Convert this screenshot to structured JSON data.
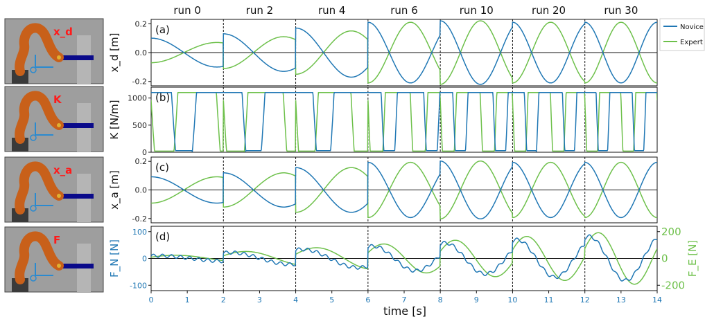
{
  "chart_data": {
    "type": "line",
    "runs": [
      "run 0",
      "run 2",
      "run 4",
      "run 6",
      "run 10",
      "run 20",
      "run 30"
    ],
    "xlabel": "time [s]",
    "xlim": [
      0,
      14
    ],
    "xticks": [
      "0",
      "1",
      "2",
      "3",
      "4",
      "5",
      "6",
      "7",
      "8",
      "9",
      "10",
      "11",
      "12",
      "13",
      "14"
    ],
    "run_boundaries": [
      2,
      4,
      6,
      8,
      10,
      12
    ],
    "legend": {
      "placement": "right",
      "entries": [
        {
          "name": "Novice",
          "color": "#1f77b4"
        },
        {
          "name": "Expert",
          "color": "#6dc04a"
        }
      ]
    },
    "panels": [
      {
        "tag": "(a)",
        "ylabel": "x_d [m]",
        "ylim": [
          -0.23,
          0.23
        ],
        "yticks": [
          "0.2",
          "0.0",
          "-0.2"
        ],
        "ytick_values": [
          0.2,
          0.0,
          -0.2
        ],
        "novice_amplitude": [
          0.1,
          0.13,
          0.17,
          0.21,
          0.22,
          0.21,
          0.21
        ],
        "expert_amplitude": [
          0.07,
          0.11,
          0.15,
          0.21,
          0.22,
          0.21,
          0.21
        ]
      },
      {
        "tag": "(b)",
        "ylabel": "K [N/m]",
        "ylim": [
          0,
          1200
        ],
        "yticks": [
          "1000",
          "500",
          "0"
        ],
        "ytick_values": [
          1000,
          500,
          0
        ],
        "high_level": 1100
      },
      {
        "tag": "(c)",
        "ylabel": "x_a [m]",
        "ylim": [
          -0.23,
          0.23
        ],
        "yticks": [
          "0.2",
          "0.0",
          "-0.2"
        ],
        "ytick_values": [
          0.2,
          0.0,
          -0.2
        ]
      },
      {
        "tag": "(d)",
        "ylabel_left": "F_N [N]",
        "ylabel_right": "F_E [N]",
        "ylim": [
          -120,
          120
        ],
        "yticks_left": [
          "100",
          "0",
          "-100"
        ],
        "ytick_values_left": [
          100,
          0,
          -100
        ],
        "yticks_right": [
          "200",
          "0",
          "-200"
        ],
        "ytick_values_right": [
          200,
          0,
          -200
        ]
      }
    ],
    "thumbnails": [
      {
        "label": "x_d"
      },
      {
        "label": "K"
      },
      {
        "label": "x_a"
      },
      {
        "label": "F"
      }
    ],
    "colors": {
      "novice": "#1f77b4",
      "expert": "#6dc04a",
      "red": "#ff1a1a"
    }
  }
}
